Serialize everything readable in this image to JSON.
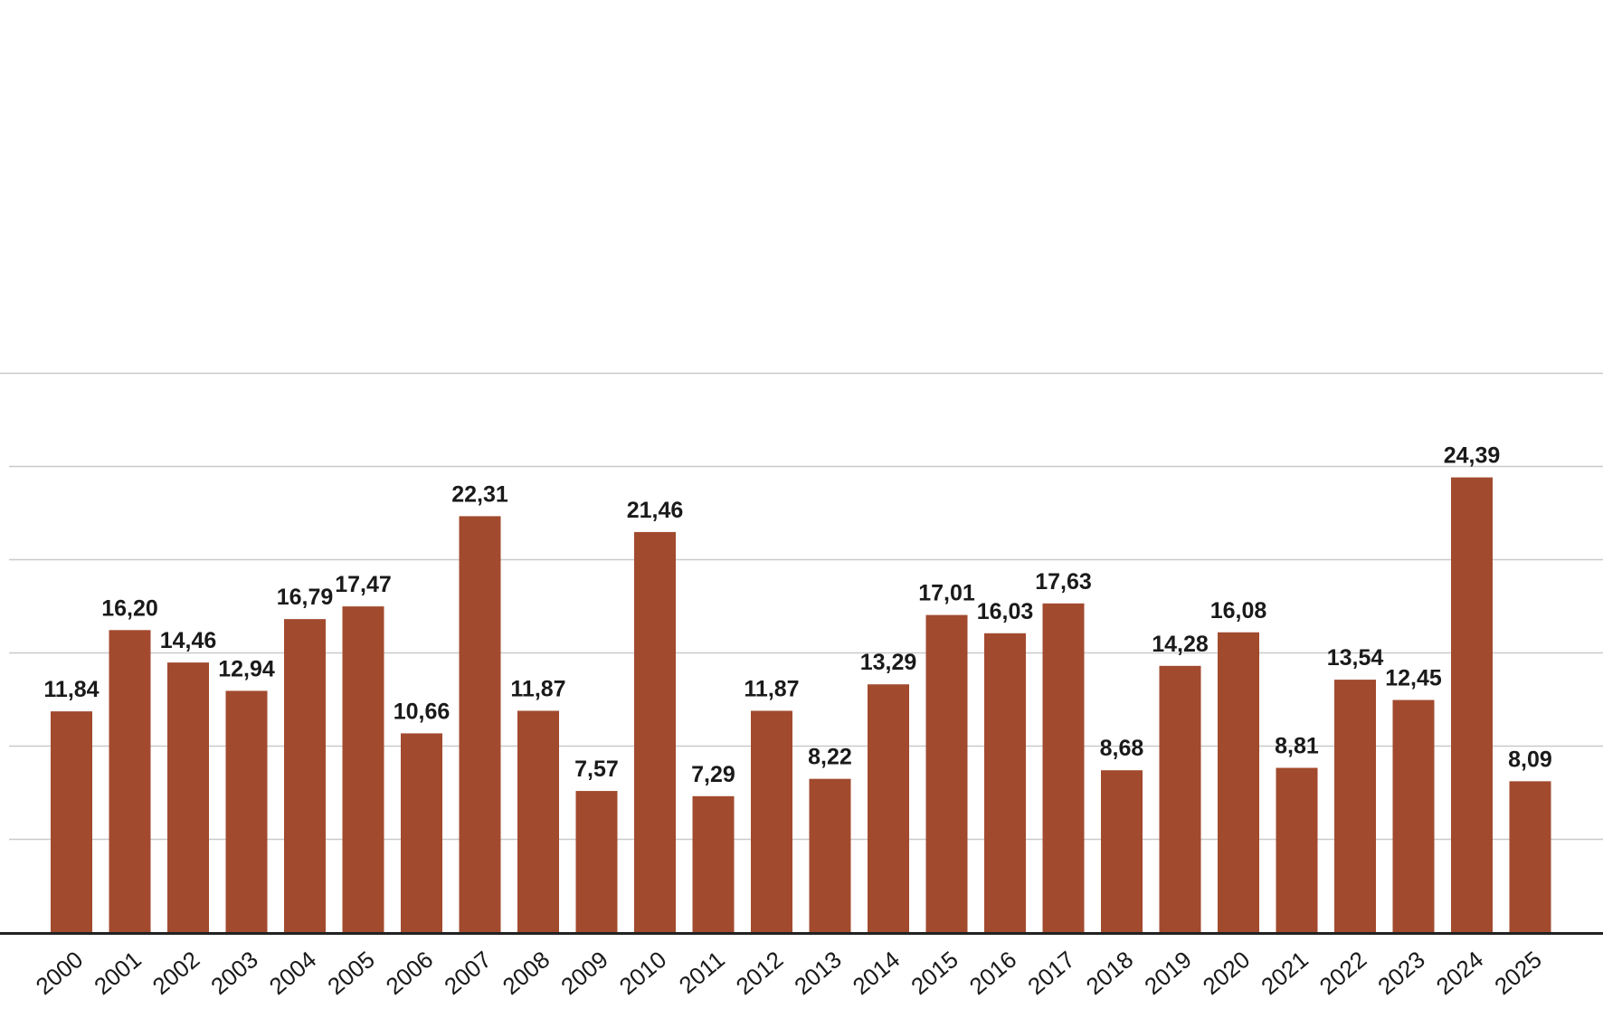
{
  "chart_data": {
    "type": "bar",
    "categories": [
      "2000",
      "2001",
      "2002",
      "2003",
      "2004",
      "2005",
      "2006",
      "2007",
      "2008",
      "2009",
      "2010",
      "2011",
      "2012",
      "2013",
      "2014",
      "2015",
      "2016",
      "2017",
      "2018",
      "2019",
      "2020",
      "2021",
      "2022",
      "2023",
      "2024",
      "2025"
    ],
    "values": [
      11.84,
      16.2,
      14.46,
      12.94,
      16.79,
      17.47,
      10.66,
      22.31,
      11.87,
      7.57,
      21.46,
      7.29,
      11.87,
      8.22,
      13.29,
      17.01,
      16.03,
      17.63,
      8.68,
      14.28,
      16.08,
      8.81,
      13.54,
      12.45,
      24.39,
      8.09
    ],
    "value_labels": [
      "11,84",
      "16,20",
      "14,46",
      "12,94",
      "16,79",
      "17,47",
      "10,66",
      "22,31",
      "11,87",
      "7,57",
      "21,46",
      "7,29",
      "11,87",
      "8,22",
      "13,29",
      "17,01",
      "16,03",
      "17,63",
      "8,68",
      "14,28",
      "16,08",
      "8,81",
      "13,54",
      "12,45",
      "24,39",
      "8,09"
    ],
    "title": "",
    "xlabel": "",
    "ylabel": "",
    "ylim": [
      0,
      30
    ],
    "grid": true,
    "colors": {
      "bar": "#a24a2e",
      "grid": "#c9c9c9",
      "axis": "#222222",
      "text": "#1a1a1a"
    }
  }
}
